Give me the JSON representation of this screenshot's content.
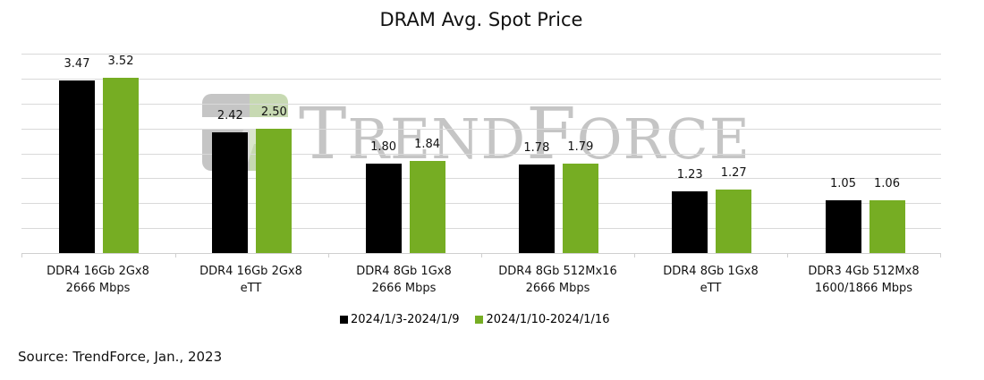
{
  "chart_data": {
    "type": "bar",
    "title": "DRAM Avg. Spot Price",
    "xlabel": "",
    "ylabel": "",
    "ylim": [
      0,
      4
    ],
    "grid": true,
    "gridline_step": 0.5,
    "legend_position": "bottom",
    "categories": [
      "DDR4 16Gb 2Gx8 2666 Mbps",
      "DDR4 16Gb 2Gx8 eTT",
      "DDR4 8Gb 1Gx8 2666 Mbps",
      "DDR4 8Gb 512Mx16 2666 Mbps",
      "DDR4 8Gb 1Gx8 eTT",
      "DDR3 4Gb 512Mx8 1600/1866 Mbps"
    ],
    "series": [
      {
        "name": "2024/1/3-2024/1/9",
        "color": "#000000",
        "values": [
          3.47,
          2.42,
          1.8,
          1.78,
          1.23,
          1.05
        ]
      },
      {
        "name": "2024/1/10-2024/1/16",
        "color": "#76ad23",
        "values": [
          3.52,
          2.5,
          1.84,
          1.79,
          1.27,
          1.06
        ]
      }
    ]
  },
  "title": "DRAM Avg. Spot Price",
  "categories": [
    {
      "line1": "DDR4 16Gb 2Gx8",
      "line2": "2666 Mbps"
    },
    {
      "line1": "DDR4 16Gb 2Gx8",
      "line2": "eTT"
    },
    {
      "line1": "DDR4 8Gb 1Gx8",
      "line2": "2666 Mbps"
    },
    {
      "line1": "DDR4 8Gb 512Mx16",
      "line2": "2666 Mbps"
    },
    {
      "line1": "DDR4 8Gb 1Gx8",
      "line2": "eTT"
    },
    {
      "line1": "DDR3 4Gb 512Mx8",
      "line2": "1600/1866 Mbps"
    }
  ],
  "labels": {
    "s1": [
      "3.47",
      "2.42",
      "1.80",
      "1.78",
      "1.23",
      "1.05"
    ],
    "s2": [
      "3.52",
      "2.50",
      "1.84",
      "1.79",
      "1.27",
      "1.06"
    ]
  },
  "legend": {
    "s1": "2024/1/3-2024/1/9",
    "s2": "2024/1/10-2024/1/16"
  },
  "watermark": {
    "text_big1": "T",
    "text_small1": "REND",
    "text_big2": "F",
    "text_small2": "ORCE"
  },
  "source": "Source: TrendForce, Jan., 2023"
}
